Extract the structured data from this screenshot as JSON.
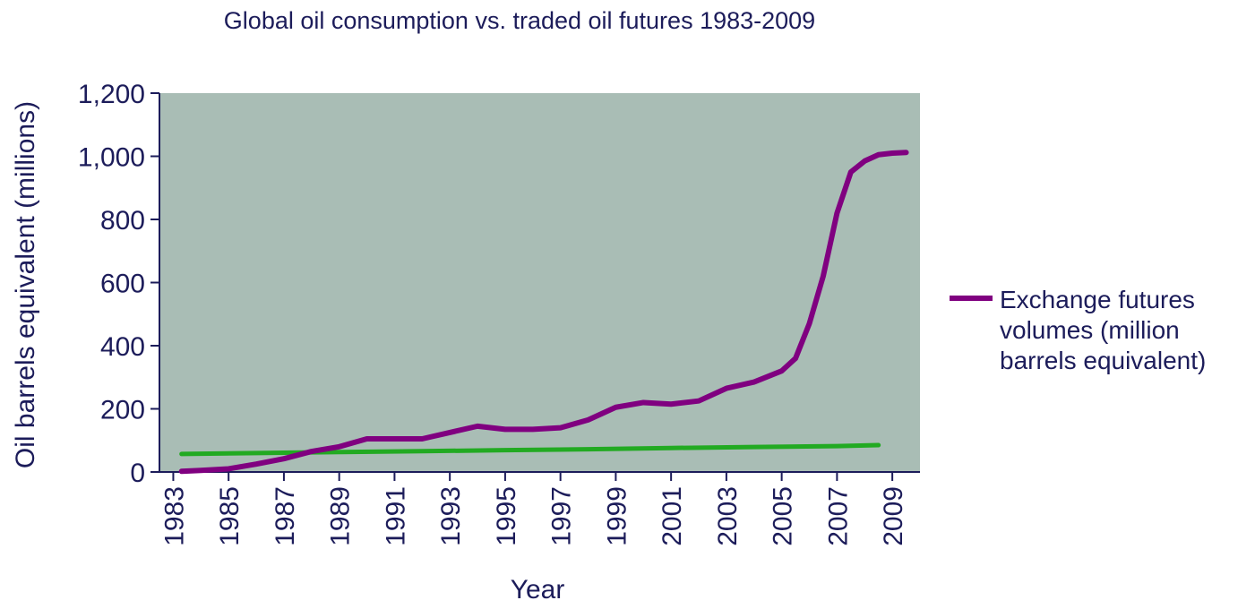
{
  "chart_data": {
    "type": "line",
    "title": "Global oil consumption vs. traded oil futures 1983-2009",
    "x_label": "Year",
    "y_label": "Oil barrels equivalent (millions)",
    "xlim": [
      1982.5,
      2010
    ],
    "xticks": [
      1983,
      1985,
      1987,
      1989,
      1991,
      1993,
      1995,
      1997,
      1999,
      2001,
      2003,
      2005,
      2007,
      2009
    ],
    "ylim": [
      0,
      1200
    ],
    "yticks": [
      0,
      200,
      400,
      600,
      800,
      {
        "value": 1000,
        "label": "1,000"
      },
      {
        "value": 1200,
        "label": "1,200"
      }
    ],
    "background": "#a9bdb5",
    "legend": "right",
    "series": [
      {
        "color": "#22aa22",
        "x": [
          1983.3,
          1986,
          1989,
          1992,
          1995,
          1998,
          2001,
          2004,
          2007,
          2008.5
        ],
        "values": [
          57,
          60,
          63,
          66,
          69,
          72,
          76,
          79,
          82,
          85
        ]
      },
      {
        "name": "Exchange futures volumes (million barrels equivalent)",
        "color": "#800080",
        "x": [
          1983.3,
          1984,
          1985,
          1986,
          1987,
          1988,
          1989,
          1990,
          1991,
          1992,
          1993,
          1994,
          1995,
          1996,
          1997,
          1998,
          1999,
          2000,
          2001,
          2002,
          2003,
          2004,
          2005,
          2005.5,
          2006,
          2006.5,
          2007,
          2007.5,
          2008,
          2008.5,
          2009,
          2009.5
        ],
        "values": [
          2,
          5,
          10,
          25,
          42,
          65,
          80,
          105,
          105,
          105,
          125,
          145,
          135,
          135,
          140,
          165,
          205,
          220,
          215,
          225,
          265,
          285,
          320,
          360,
          470,
          620,
          820,
          950,
          985,
          1005,
          1010,
          1012
        ]
      }
    ]
  }
}
